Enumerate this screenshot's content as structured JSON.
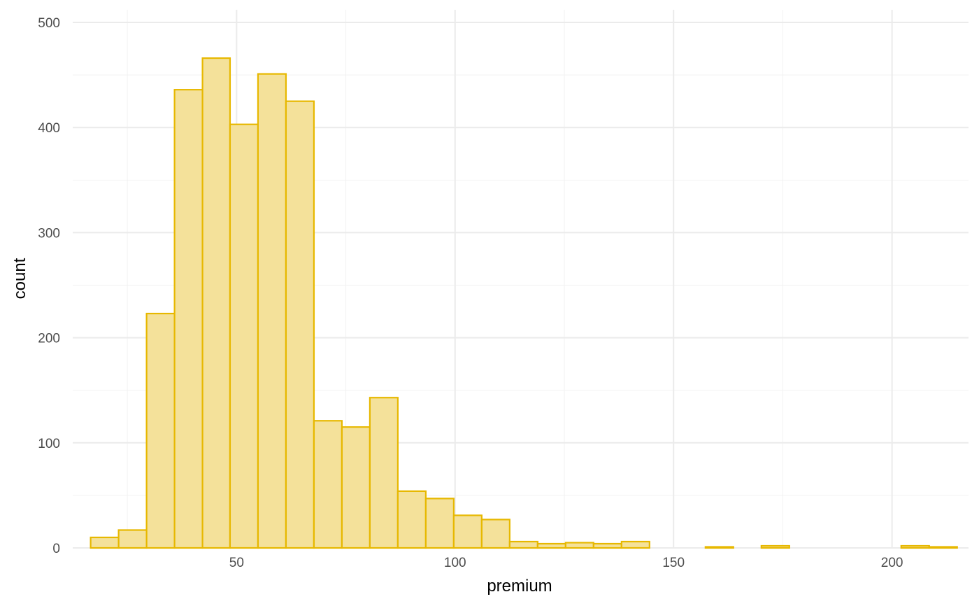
{
  "chart_data": {
    "type": "bar",
    "subtype": "histogram",
    "title": "",
    "xlabel": "premium",
    "ylabel": "count",
    "xlim": [
      12.5,
      217.5
    ],
    "ylim": [
      0,
      512
    ],
    "x_ticks": [
      50,
      100,
      150,
      200
    ],
    "x_tick_labels": [
      "50",
      "100",
      "150",
      "200"
    ],
    "y_ticks": [
      0,
      100,
      200,
      300,
      400,
      500
    ],
    "y_tick_labels": [
      "0",
      "100",
      "200",
      "300",
      "400",
      "500"
    ],
    "grid": true,
    "legend": "none",
    "bins": [
      {
        "x0": 16.6,
        "x1": 23.0,
        "count": 10
      },
      {
        "x0": 23.0,
        "x1": 29.4,
        "count": 17
      },
      {
        "x0": 29.4,
        "x1": 35.8,
        "count": 223
      },
      {
        "x0": 35.8,
        "x1": 42.2,
        "count": 436
      },
      {
        "x0": 42.2,
        "x1": 48.5,
        "count": 466
      },
      {
        "x0": 48.5,
        "x1": 54.9,
        "count": 403
      },
      {
        "x0": 54.9,
        "x1": 61.3,
        "count": 451
      },
      {
        "x0": 61.3,
        "x1": 67.7,
        "count": 425
      },
      {
        "x0": 67.7,
        "x1": 74.1,
        "count": 121
      },
      {
        "x0": 74.1,
        "x1": 80.5,
        "count": 115
      },
      {
        "x0": 80.5,
        "x1": 86.9,
        "count": 143
      },
      {
        "x0": 86.9,
        "x1": 93.3,
        "count": 54
      },
      {
        "x0": 93.3,
        "x1": 99.7,
        "count": 47
      },
      {
        "x0": 99.7,
        "x1": 106.1,
        "count": 31
      },
      {
        "x0": 106.1,
        "x1": 112.5,
        "count": 27
      },
      {
        "x0": 112.5,
        "x1": 118.9,
        "count": 6
      },
      {
        "x0": 118.9,
        "x1": 125.3,
        "count": 4
      },
      {
        "x0": 125.3,
        "x1": 131.7,
        "count": 5
      },
      {
        "x0": 131.7,
        "x1": 138.1,
        "count": 4
      },
      {
        "x0": 138.1,
        "x1": 144.5,
        "count": 6
      },
      {
        "x0": 144.5,
        "x1": 150.9,
        "count": 0
      },
      {
        "x0": 150.9,
        "x1": 157.3,
        "count": 0
      },
      {
        "x0": 157.3,
        "x1": 163.7,
        "count": 1
      },
      {
        "x0": 163.7,
        "x1": 170.1,
        "count": 0
      },
      {
        "x0": 170.1,
        "x1": 176.5,
        "count": 2
      },
      {
        "x0": 176.5,
        "x1": 182.9,
        "count": 0
      },
      {
        "x0": 182.9,
        "x1": 189.3,
        "count": 0
      },
      {
        "x0": 189.3,
        "x1": 195.7,
        "count": 0
      },
      {
        "x0": 195.7,
        "x1": 202.1,
        "count": 0
      },
      {
        "x0": 202.1,
        "x1": 208.5,
        "count": 2
      },
      {
        "x0": 208.5,
        "x1": 214.9,
        "count": 1
      }
    ]
  },
  "colors": {
    "bar_fill": "#f4e19a",
    "bar_outline": "#e7b800",
    "grid_major": "#ebebeb",
    "grid_minor": "#f2f2f2",
    "tick_text": "#4d4d4d",
    "title_text": "#000000"
  }
}
